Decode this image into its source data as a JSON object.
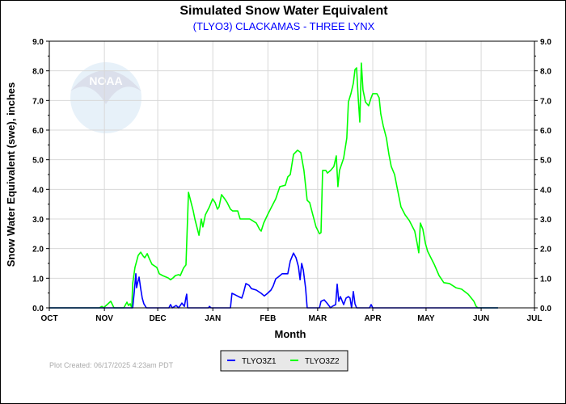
{
  "chart_data": {
    "type": "line",
    "title": "Simulated Snow Water Equivalent",
    "subtitle": "(TLYO3) CLACKAMAS - THREE LYNX",
    "xlabel": "Month",
    "ylabel": "Snow Water Equivalent (swe),  inches",
    "x_units": "days since Oct 1",
    "xlim": [
      0,
      273
    ],
    "ylim": [
      0,
      9
    ],
    "x_ticks": [
      {
        "label": "OCT",
        "day": 0
      },
      {
        "label": "NOV",
        "day": 31
      },
      {
        "label": "DEC",
        "day": 61
      },
      {
        "label": "JAN",
        "day": 92
      },
      {
        "label": "FEB",
        "day": 123
      },
      {
        "label": "MAR",
        "day": 151
      },
      {
        "label": "APR",
        "day": 182
      },
      {
        "label": "MAY",
        "day": 212
      },
      {
        "label": "JUN",
        "day": 243
      },
      {
        "label": "JUL",
        "day": 273
      }
    ],
    "y_ticks": [
      "0.0",
      "1.0",
      "2.0",
      "3.0",
      "4.0",
      "5.0",
      "6.0",
      "7.0",
      "8.0",
      "9.0"
    ],
    "grid": true,
    "legend_position": "bottom-center",
    "series": [
      {
        "name": "TLYO3Z1",
        "color": "#0000ff",
        "points": [
          [
            0,
            0
          ],
          [
            46.9,
            0
          ],
          [
            47.8,
            0.55
          ],
          [
            48.7,
            1.15
          ],
          [
            49.1,
            0.68
          ],
          [
            49.6,
            0.82
          ],
          [
            50.5,
            1.04
          ],
          [
            51.4,
            0.65
          ],
          [
            52.3,
            0.33
          ],
          [
            53.2,
            0.14
          ],
          [
            54.6,
            0
          ],
          [
            67.3,
            0
          ],
          [
            68.2,
            0.11
          ],
          [
            69.2,
            0
          ],
          [
            71.4,
            0.08
          ],
          [
            72.8,
            0
          ],
          [
            74.6,
            0.16
          ],
          [
            76.0,
            0.05
          ],
          [
            76.9,
            0.35
          ],
          [
            77.3,
            0.46
          ],
          [
            77.8,
            0
          ],
          [
            89.6,
            0
          ],
          [
            90.1,
            0.05
          ],
          [
            91,
            0
          ],
          [
            101.9,
            0
          ],
          [
            102.8,
            0.49
          ],
          [
            104.6,
            0.44
          ],
          [
            106.5,
            0.38
          ],
          [
            108.3,
            0.33
          ],
          [
            109.2,
            0.49
          ],
          [
            110.6,
            0.82
          ],
          [
            112.4,
            0.76
          ],
          [
            113.7,
            0.65
          ],
          [
            116.5,
            0.6
          ],
          [
            119.2,
            0.49
          ],
          [
            121.0,
            0.4
          ],
          [
            122.8,
            0.49
          ],
          [
            124.7,
            0.6
          ],
          [
            126.0,
            0.74
          ],
          [
            127.4,
            0.98
          ],
          [
            128.8,
            1.04
          ],
          [
            131.0,
            1.15
          ],
          [
            134.2,
            1.15
          ],
          [
            135.6,
            1.58
          ],
          [
            137.4,
            1.85
          ],
          [
            138.8,
            1.69
          ],
          [
            140.2,
            1.39
          ],
          [
            141.1,
            0.95
          ],
          [
            142.0,
            1.5
          ],
          [
            142.9,
            1.28
          ],
          [
            144.2,
            0.68
          ],
          [
            145.1,
            0
          ],
          [
            152.0,
            0
          ],
          [
            152.9,
            0.22
          ],
          [
            154.7,
            0.27
          ],
          [
            156.5,
            0.14
          ],
          [
            158.3,
            0
          ],
          [
            159.2,
            0.05
          ],
          [
            161.1,
            0.11
          ],
          [
            162.0,
            0.8
          ],
          [
            162.9,
            0.22
          ],
          [
            163.8,
            0.38
          ],
          [
            165.6,
            0.11
          ],
          [
            167.0,
            0.33
          ],
          [
            168.3,
            0.38
          ],
          [
            169.2,
            0.33
          ],
          [
            170.1,
            0
          ],
          [
            171.1,
            0.55
          ],
          [
            172.0,
            0.14
          ],
          [
            172.9,
            0
          ],
          [
            180.2,
            0
          ],
          [
            181.1,
            0.11
          ],
          [
            182.0,
            0
          ],
          [
            252.5,
            0
          ]
        ]
      },
      {
        "name": "TLYO3Z2",
        "color": "#00ff00",
        "points": [
          [
            0,
            0
          ],
          [
            28.2,
            0
          ],
          [
            29.6,
            0.05
          ],
          [
            30.5,
            0
          ],
          [
            34.6,
            0.22
          ],
          [
            36.4,
            0
          ],
          [
            41.9,
            0
          ],
          [
            43.7,
            0.19
          ],
          [
            44.6,
            0.08
          ],
          [
            45.5,
            0.14
          ],
          [
            46.4,
            0
          ],
          [
            46.9,
            0.82
          ],
          [
            48.2,
            1.36
          ],
          [
            50.0,
            1.77
          ],
          [
            51.4,
            1.88
          ],
          [
            52.8,
            1.75
          ],
          [
            53.7,
            1.69
          ],
          [
            55.1,
            1.83
          ],
          [
            56.4,
            1.64
          ],
          [
            57.8,
            1.47
          ],
          [
            60.5,
            1.36
          ],
          [
            61.9,
            1.15
          ],
          [
            63.7,
            1.09
          ],
          [
            66.9,
            1.01
          ],
          [
            68.2,
            0.95
          ],
          [
            69.6,
            1.01
          ],
          [
            71.0,
            1.09
          ],
          [
            72.8,
            1.12
          ],
          [
            73.7,
            1.09
          ],
          [
            75.5,
            1.34
          ],
          [
            76.9,
            1.45
          ],
          [
            78.3,
            3.9
          ],
          [
            81.0,
            3.27
          ],
          [
            81.9,
            3.0
          ],
          [
            84.2,
            2.45
          ],
          [
            85.5,
            3.0
          ],
          [
            86.4,
            2.73
          ],
          [
            87.8,
            3.14
          ],
          [
            90.1,
            3.41
          ],
          [
            91.9,
            3.68
          ],
          [
            93.3,
            3.55
          ],
          [
            94.6,
            3.33
          ],
          [
            95.5,
            3.41
          ],
          [
            96.9,
            3.82
          ],
          [
            98.7,
            3.68
          ],
          [
            100.1,
            3.55
          ],
          [
            101.9,
            3.33
          ],
          [
            103.2,
            3.27
          ],
          [
            106.0,
            3.27
          ],
          [
            107.4,
            3.0
          ],
          [
            112.8,
            3.0
          ],
          [
            116.5,
            2.86
          ],
          [
            118.3,
            2.65
          ],
          [
            119.2,
            2.59
          ],
          [
            120.6,
            2.86
          ],
          [
            122.8,
            3.14
          ],
          [
            125.1,
            3.41
          ],
          [
            127.4,
            3.68
          ],
          [
            129.7,
            4.09
          ],
          [
            132.8,
            4.14
          ],
          [
            134.2,
            4.42
          ],
          [
            135.6,
            4.5
          ],
          [
            137.4,
            5.18
          ],
          [
            139.7,
            5.32
          ],
          [
            141.5,
            5.24
          ],
          [
            143.3,
            4.64
          ],
          [
            145.1,
            3.63
          ],
          [
            146.5,
            3.55
          ],
          [
            148.3,
            3.14
          ],
          [
            150.1,
            2.73
          ],
          [
            152.0,
            2.5
          ],
          [
            152.9,
            2.54
          ],
          [
            153.8,
            4.64
          ],
          [
            155.6,
            4.64
          ],
          [
            156.5,
            4.55
          ],
          [
            158.3,
            4.64
          ],
          [
            160.1,
            4.77
          ],
          [
            161.5,
            5.13
          ],
          [
            162.4,
            4.09
          ],
          [
            163.3,
            4.64
          ],
          [
            165.6,
            5.05
          ],
          [
            167.4,
            5.73
          ],
          [
            168.3,
            6.95
          ],
          [
            169.7,
            7.23
          ],
          [
            171.1,
            7.58
          ],
          [
            172.0,
            8.04
          ],
          [
            172.9,
            8.1
          ],
          [
            173.8,
            7.09
          ],
          [
            174.7,
            6.27
          ],
          [
            175.6,
            8.26
          ],
          [
            176.5,
            7.36
          ],
          [
            177.9,
            6.95
          ],
          [
            179.7,
            6.82
          ],
          [
            181.1,
            7.09
          ],
          [
            182.0,
            7.23
          ],
          [
            184.3,
            7.23
          ],
          [
            185.6,
            7.09
          ],
          [
            186.5,
            6.55
          ],
          [
            187.9,
            6.14
          ],
          [
            189.7,
            5.73
          ],
          [
            191.1,
            5.18
          ],
          [
            192.4,
            4.77
          ],
          [
            194.3,
            4.5
          ],
          [
            195.6,
            4.09
          ],
          [
            197.9,
            3.41
          ],
          [
            200.2,
            3.14
          ],
          [
            202.5,
            2.95
          ],
          [
            205.6,
            2.59
          ],
          [
            207.0,
            2.18
          ],
          [
            207.9,
            1.86
          ],
          [
            208.8,
            2.86
          ],
          [
            210.2,
            2.65
          ],
          [
            211.6,
            2.18
          ],
          [
            212.9,
            1.91
          ],
          [
            214.7,
            1.69
          ],
          [
            216.6,
            1.47
          ],
          [
            219.3,
            1.09
          ],
          [
            222.0,
            0.85
          ],
          [
            225.2,
            0.82
          ],
          [
            228.8,
            0.68
          ],
          [
            232.0,
            0.63
          ],
          [
            235.7,
            0.46
          ],
          [
            238.9,
            0.22
          ],
          [
            240.2,
            0.05
          ],
          [
            241.1,
            0
          ],
          [
            252.5,
            0
          ]
        ]
      }
    ]
  },
  "logo_text": "NOAA",
  "footer": "Plot Created: 06/17/2025 4:23am PDT"
}
